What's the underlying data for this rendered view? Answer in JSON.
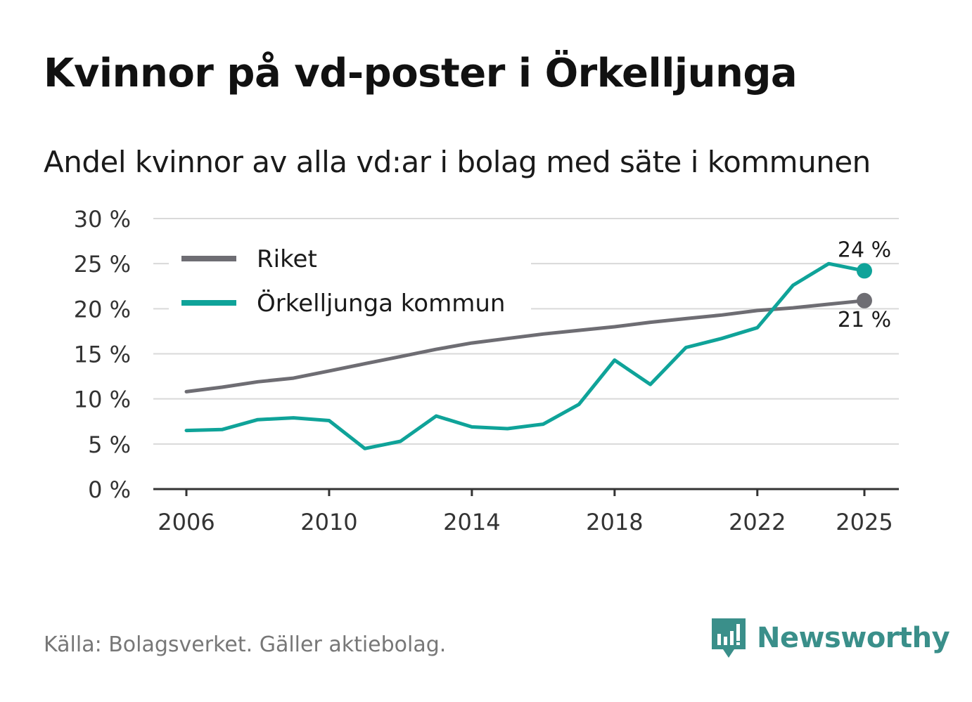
{
  "title": "Kvinnor på vd-poster i Örkelljunga",
  "subtitle": "Andel kvinnor av alla vd:ar i bolag med säte i kommunen",
  "source": "Källa: Bolagsverket. Gäller aktiebolag.",
  "brand": {
    "name": "Newsworthy",
    "icon": "newsworthy-logo-icon",
    "color": "#3a8f8a"
  },
  "colors": {
    "riket": "#6e6d73",
    "kommun": "#0fa399",
    "grid": "#d9d9d9",
    "axis": "#333333"
  },
  "chart_data": {
    "type": "line",
    "title": "Andel kvinnor av alla vd:ar i bolag med säte i kommunen",
    "xlabel": "",
    "ylabel": "",
    "x": [
      2006,
      2007,
      2008,
      2009,
      2010,
      2011,
      2012,
      2013,
      2014,
      2015,
      2016,
      2017,
      2018,
      2019,
      2020,
      2021,
      2022,
      2023,
      2024,
      2025
    ],
    "x_ticks": [
      2006,
      2010,
      2014,
      2018,
      2022,
      2025
    ],
    "x_tick_labels": [
      "2006",
      "2010",
      "2014",
      "2018",
      "2022",
      "2025"
    ],
    "ylim": [
      0,
      30
    ],
    "y_ticks": [
      0,
      5,
      10,
      15,
      20,
      25,
      30
    ],
    "y_tick_labels": [
      "0 %",
      "5 %",
      "10 %",
      "15 %",
      "20 %",
      "25 %",
      "30 %"
    ],
    "grid": true,
    "legend_position": "top-left",
    "series": [
      {
        "name": "Riket",
        "values": [
          10.8,
          11.3,
          11.9,
          12.3,
          13.1,
          13.9,
          14.7,
          15.5,
          16.2,
          16.7,
          17.2,
          17.6,
          18.0,
          18.5,
          18.9,
          19.3,
          19.8,
          20.1,
          20.5,
          20.9
        ],
        "end_label": "21 %"
      },
      {
        "name": "Örkelljunga kommun",
        "values": [
          6.5,
          6.6,
          7.7,
          7.9,
          7.6,
          4.5,
          5.3,
          8.1,
          6.9,
          6.7,
          7.2,
          9.4,
          14.3,
          11.6,
          15.7,
          16.7,
          17.9,
          22.6,
          25.0,
          24.2
        ],
        "end_label": "24 %"
      }
    ]
  }
}
